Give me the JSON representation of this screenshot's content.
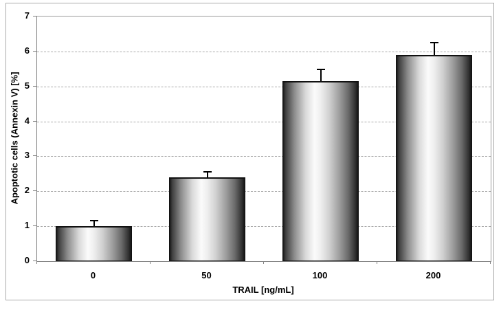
{
  "chart_data": {
    "type": "bar",
    "title": "",
    "categories": [
      "0",
      "50",
      "100",
      "200"
    ],
    "values": [
      1.0,
      2.4,
      5.15,
      5.9
    ],
    "errors_upper": [
      0.18,
      0.18,
      0.35,
      0.37
    ],
    "xlabel": "TRAIL [ng/mL]",
    "ylabel": "Apoptotic cells (Annexin V) [%]",
    "ylim": [
      0,
      7
    ],
    "yticks": [
      0,
      1,
      2,
      3,
      4,
      5,
      6,
      7
    ],
    "grid": "horizontal-dashed",
    "legend": "none",
    "bar_style": "grayscale-cylinder-gradient",
    "colors": {
      "background": "#ffffff",
      "bar_edge": "#111111",
      "bar_highlight": "#fbfbfb",
      "bar_shadow": "#161616",
      "gridline": "#a8a8a8",
      "axis": "#7f7f7f",
      "frame": "#a9a9a9",
      "text": "#000000",
      "error_bar": "#000000"
    }
  }
}
